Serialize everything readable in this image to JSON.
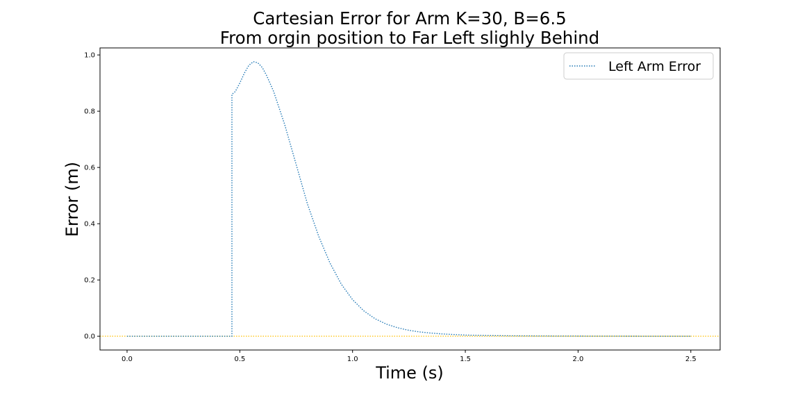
{
  "chart_data": {
    "type": "line",
    "title": [
      "Cartesian Error for Arm K=30, B=6.5",
      "From orgin position to Far Left slighly Behind"
    ],
    "xlabel": "Time (s)",
    "ylabel": "Error (m)",
    "xlim": [
      -0.12,
      2.63
    ],
    "ylim": [
      -0.049,
      1.025
    ],
    "xticks": [
      0.0,
      0.5,
      1.0,
      1.5,
      2.0,
      2.5
    ],
    "yticks": [
      0.0,
      0.2,
      0.4,
      0.6,
      0.8,
      1.0
    ],
    "xtick_labels": [
      "0.0",
      "0.5",
      "1.0",
      "1.5",
      "2.0",
      "2.5"
    ],
    "ytick_labels": [
      "0.0",
      "0.2",
      "0.4",
      "0.6",
      "0.8",
      "1.0"
    ],
    "grid": false,
    "legend_position": "top-right",
    "series": [
      {
        "name": "Left Arm Error",
        "color": "#1f77b4",
        "style": "dotted",
        "x": [
          0.0,
          0.1,
          0.2,
          0.3,
          0.4,
          0.465,
          0.465,
          0.48,
          0.5,
          0.52,
          0.54,
          0.56,
          0.58,
          0.6,
          0.62,
          0.65,
          0.7,
          0.75,
          0.8,
          0.85,
          0.9,
          0.95,
          1.0,
          1.05,
          1.1,
          1.15,
          1.2,
          1.25,
          1.3,
          1.35,
          1.4,
          1.45,
          1.5,
          1.6,
          1.7,
          1.8,
          1.9,
          2.0,
          2.1,
          2.2,
          2.3,
          2.4,
          2.5
        ],
        "values": [
          0.0,
          0.0,
          0.0,
          0.0,
          0.0,
          0.0,
          0.86,
          0.87,
          0.9,
          0.935,
          0.963,
          0.976,
          0.972,
          0.955,
          0.925,
          0.87,
          0.75,
          0.61,
          0.47,
          0.355,
          0.26,
          0.185,
          0.13,
          0.09,
          0.062,
          0.043,
          0.03,
          0.021,
          0.015,
          0.011,
          0.008,
          0.006,
          0.004,
          0.0025,
          0.0015,
          0.001,
          0.0006,
          0.0004,
          0.0002,
          0.0001,
          0.0,
          0.0,
          0.0
        ]
      }
    ],
    "reference_line": {
      "y": 0.0,
      "color": "#ffbf00",
      "style": "dotted"
    }
  }
}
